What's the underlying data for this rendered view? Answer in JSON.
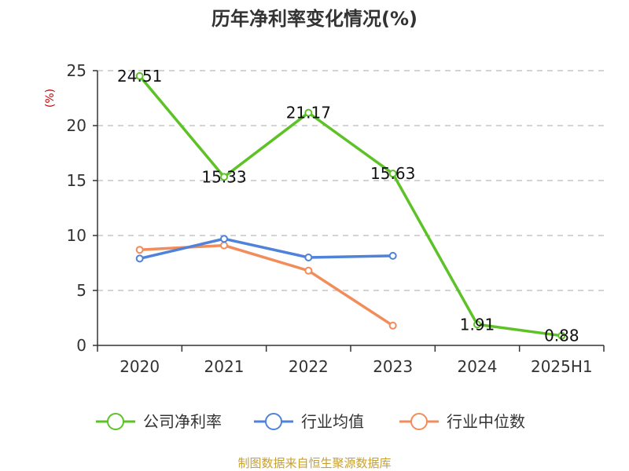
{
  "chart_data": {
    "type": "line",
    "title": "历年净利率变化情况(%)",
    "y_unit_label": "(%)",
    "categories": [
      "2020",
      "2021",
      "2022",
      "2023",
      "2024",
      "2025H1"
    ],
    "ylim": [
      0,
      25
    ],
    "yticks": [
      0,
      5,
      10,
      15,
      20,
      25
    ],
    "grid": true,
    "legend_position": "bottom",
    "series": [
      {
        "name": "公司净利率",
        "color": "#5cc226",
        "values": [
          24.51,
          15.33,
          21.17,
          15.63,
          1.91,
          0.88
        ],
        "data_labels": [
          "24.51",
          "15.33",
          "21.17",
          "15.63",
          "1.91",
          "0.88"
        ]
      },
      {
        "name": "行业均值",
        "color": "#4f82d8",
        "values": [
          7.9,
          9.7,
          8.0,
          8.15,
          null,
          null
        ]
      },
      {
        "name": "行业中位数",
        "color": "#f28c5a",
        "values": [
          8.7,
          9.1,
          6.8,
          1.8,
          null,
          null
        ]
      }
    ],
    "source": "制图数据来自恒生聚源数据库"
  }
}
